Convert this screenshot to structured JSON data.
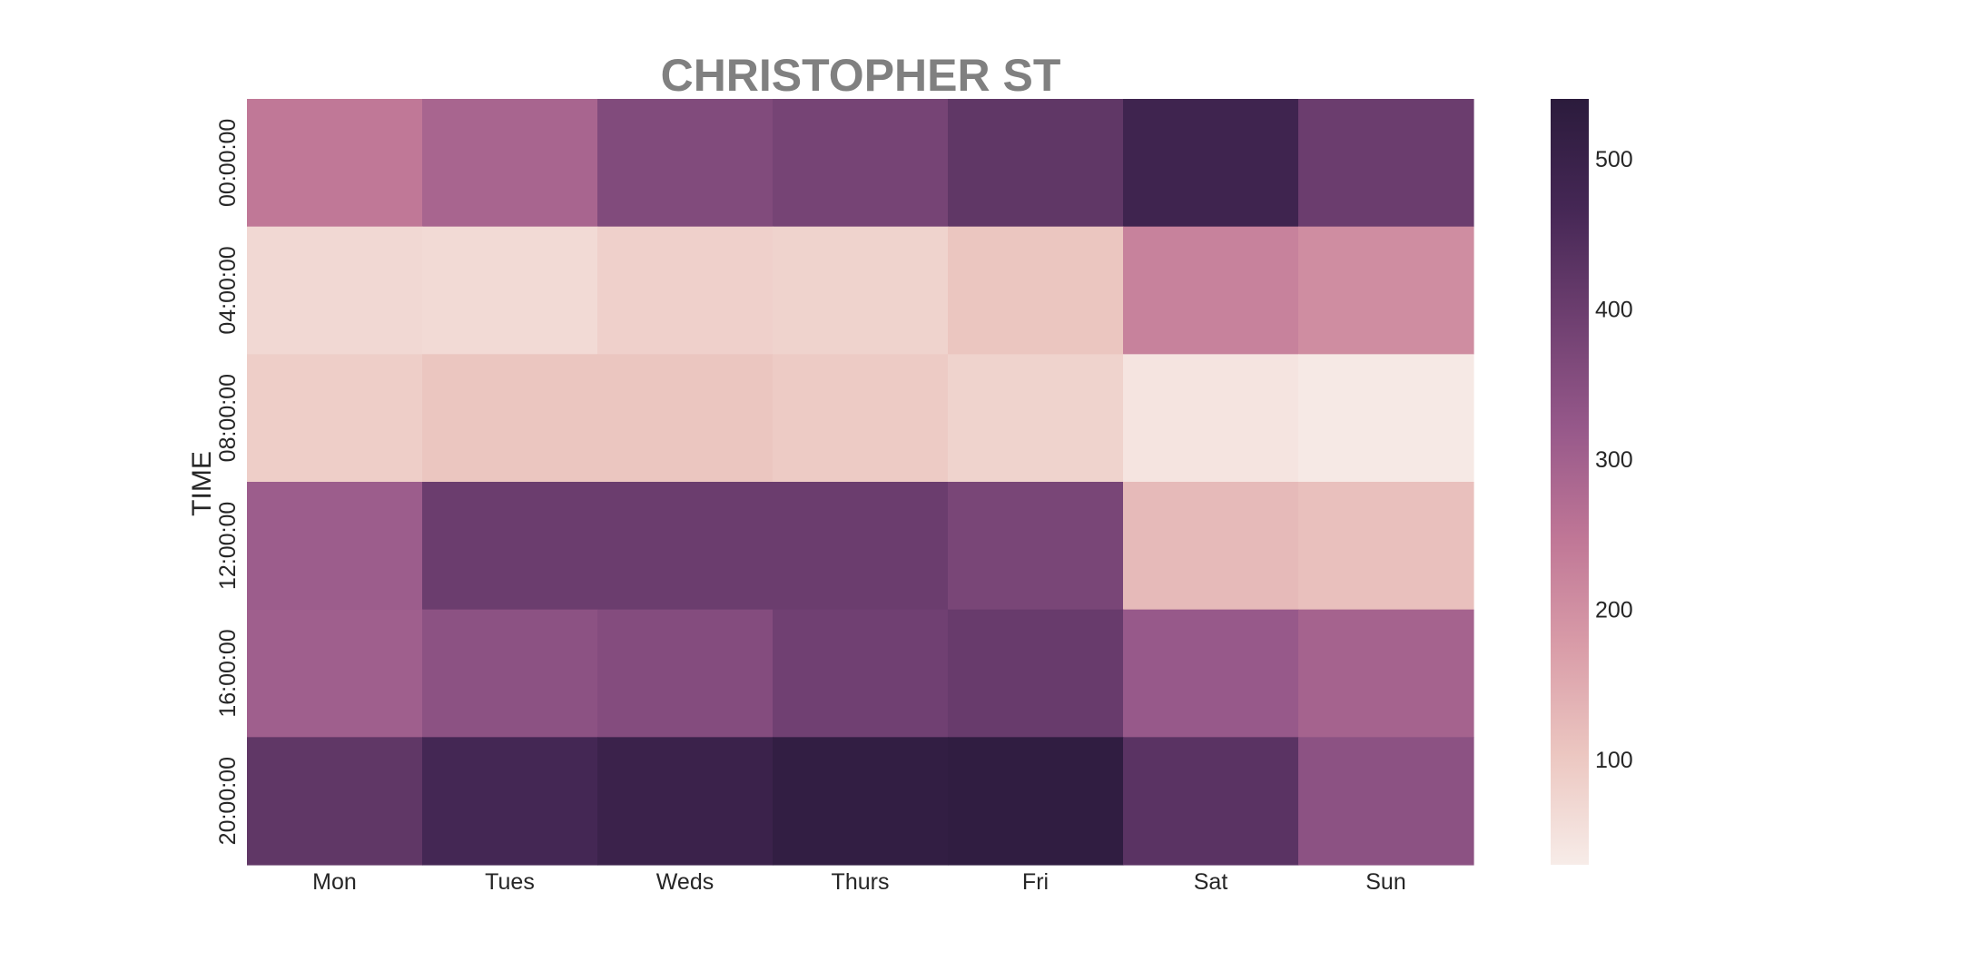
{
  "chart_data": {
    "type": "heatmap",
    "title": "CHRISTOPHER ST",
    "xlabel": "",
    "ylabel": "TIME",
    "x_categories": [
      "Mon",
      "Tues",
      "Weds",
      "Thurs",
      "Fri",
      "Sat",
      "Sun"
    ],
    "y_categories": [
      "00:00:00",
      "04:00:00",
      "08:00:00",
      "12:00:00",
      "16:00:00",
      "20:00:00"
    ],
    "values": [
      [
        245,
        290,
        360,
        380,
        420,
        485,
        400
      ],
      [
        70,
        65,
        85,
        80,
        105,
        225,
        205
      ],
      [
        90,
        105,
        105,
        95,
        80,
        45,
        35
      ],
      [
        310,
        400,
        400,
        400,
        375,
        125,
        115
      ],
      [
        305,
        340,
        355,
        390,
        405,
        320,
        295
      ],
      [
        420,
        470,
        495,
        520,
        525,
        430,
        340
      ]
    ],
    "colorbar": {
      "range": [
        30,
        540
      ],
      "ticks": [
        100,
        200,
        300,
        400,
        500
      ],
      "colors": [
        "#f7ece8",
        "#ecc7c1",
        "#d99ca8",
        "#bf7696",
        "#96588a",
        "#6e3f70",
        "#452755",
        "#2b1b3c"
      ]
    }
  }
}
